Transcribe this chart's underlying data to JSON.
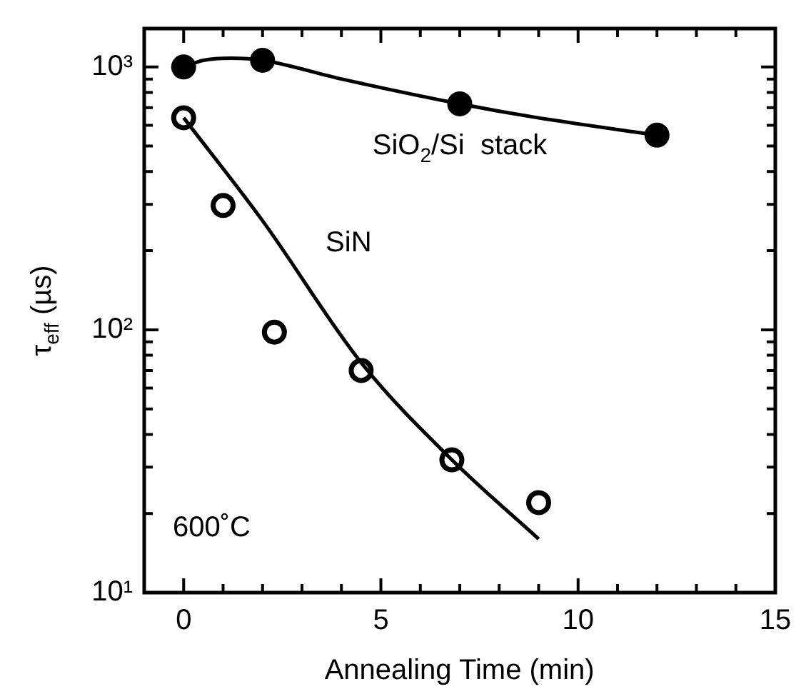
{
  "chart_data": {
    "type": "scatter",
    "xlabel": "Annealing Time (min)",
    "ylabel": "τ$_{eff}$ (µs)",
    "log": "y",
    "grid": false,
    "legend": false,
    "marker": "circle",
    "xlim": [
      -1,
      15
    ],
    "xticks": [
      0,
      {
        "value": 1,
        "label": null
      },
      {
        "value": 2,
        "label": null
      },
      {
        "value": 3,
        "label": null
      },
      {
        "value": 4,
        "label": null
      },
      5,
      {
        "value": 6,
        "label": null
      },
      {
        "value": 7,
        "label": null
      },
      {
        "value": 8,
        "label": null
      },
      {
        "value": 9,
        "label": null
      },
      10,
      {
        "value": 11,
        "label": null
      },
      {
        "value": 12,
        "label": null
      },
      {
        "value": 13,
        "label": null
      },
      {
        "value": 14,
        "label": null
      },
      15
    ],
    "ylim": [
      10,
      1400
    ],
    "yticks": [
      {
        "value": 10,
        "label": "10¹"
      },
      {
        "value": 20,
        "label": null
      },
      {
        "value": 30,
        "label": null
      },
      {
        "value": 40,
        "label": null
      },
      {
        "value": 50,
        "label": null
      },
      {
        "value": 60,
        "label": null
      },
      {
        "value": 70,
        "label": null
      },
      {
        "value": 80,
        "label": null
      },
      {
        "value": 90,
        "label": null
      },
      {
        "value": 100,
        "label": "10²"
      },
      {
        "value": 200,
        "label": null
      },
      {
        "value": 300,
        "label": null
      },
      {
        "value": 400,
        "label": null
      },
      {
        "value": 500,
        "label": null
      },
      {
        "value": 600,
        "label": null
      },
      {
        "value": 700,
        "label": null
      },
      {
        "value": 800,
        "label": null
      },
      {
        "value": 900,
        "label": null
      },
      {
        "value": 1000,
        "label": "10³"
      }
    ],
    "series": [
      {
        "type": "line",
        "marker": "none",
        "color": "#000000",
        "x": [
          0,
          0.5,
          1.2,
          2,
          4,
          7,
          9,
          12
        ],
        "values": [
          1000,
          1060,
          1080,
          1060,
          900,
          724,
          640,
          550
        ]
      },
      {
        "type": "line",
        "marker": "none",
        "color": "#000000",
        "x": [
          0,
          2,
          4.5,
          6.8,
          9
        ],
        "values": [
          641,
          260,
          75,
          32,
          16
        ]
      },
      {
        "type": "scatter",
        "name": "SiO$_{2}$/Si  stack",
        "color": "#000000",
        "x": [
          0,
          2,
          7,
          12
        ],
        "values": [
          1000,
          1060,
          724,
          550
        ]
      },
      {
        "type": "scatter",
        "name": "SiN",
        "color": "#ffffff",
        "x": [
          0,
          1,
          2.3,
          4.5,
          6.8,
          9
        ],
        "values": [
          641,
          297,
          98,
          70,
          32,
          22
        ]
      }
    ],
    "annotations": [
      "600˚C"
    ]
  }
}
